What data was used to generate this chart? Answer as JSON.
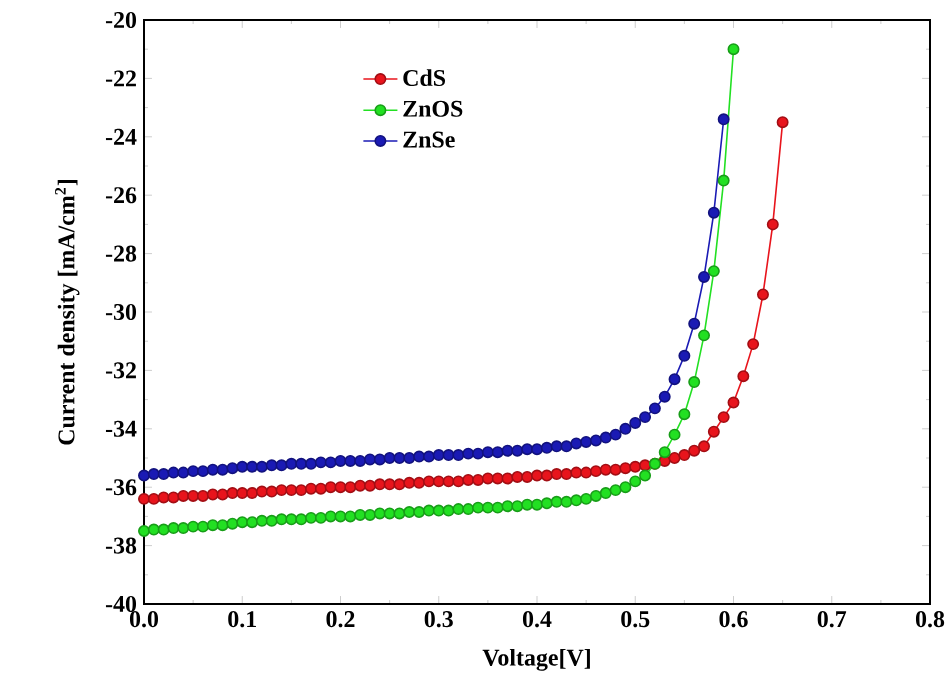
{
  "chart_data": {
    "type": "line",
    "xlabel": "Voltage[V]",
    "ylabel": "Current density [mA/cm$^{2}$]",
    "xlim": [
      0,
      0.8
    ],
    "ylim": [
      -40,
      -20
    ],
    "xticks": [
      {
        "value": 0,
        "label": "0.0"
      },
      {
        "value": 0.1,
        "label": "0.1"
      },
      {
        "value": 0.2,
        "label": "0.2"
      },
      {
        "value": 0.3,
        "label": "0.3"
      },
      {
        "value": 0.4,
        "label": "0.4"
      },
      {
        "value": 0.5,
        "label": "0.5"
      },
      {
        "value": 0.6,
        "label": "0.6"
      },
      {
        "value": 0.7,
        "label": "0.7"
      },
      {
        "value": 0.8,
        "label": "0.8"
      }
    ],
    "yticks": [
      -40,
      -38,
      -36,
      -34,
      -32,
      -30,
      -28,
      -26,
      -24,
      -22,
      -20
    ],
    "marker": "circle",
    "legend": "top left",
    "grid": false,
    "series": [
      {
        "name": "CdS",
        "color": "#e8141c",
        "x": [
          0.0,
          0.01,
          0.02,
          0.03,
          0.04,
          0.05,
          0.06,
          0.07,
          0.08,
          0.09,
          0.1,
          0.11,
          0.12,
          0.13,
          0.14,
          0.15,
          0.16,
          0.17,
          0.18,
          0.19,
          0.2,
          0.21,
          0.22,
          0.23,
          0.24,
          0.25,
          0.26,
          0.27,
          0.28,
          0.29,
          0.3,
          0.31,
          0.32,
          0.33,
          0.34,
          0.35,
          0.36,
          0.37,
          0.38,
          0.39,
          0.4,
          0.41,
          0.42,
          0.43,
          0.44,
          0.45,
          0.46,
          0.47,
          0.48,
          0.49,
          0.5,
          0.51,
          0.52,
          0.53,
          0.54,
          0.55,
          0.56,
          0.57,
          0.58,
          0.59,
          0.6,
          0.61,
          0.62,
          0.63,
          0.64,
          0.65
        ],
        "values": [
          -36.4,
          -36.4,
          -36.35,
          -36.35,
          -36.3,
          -36.3,
          -36.3,
          -36.25,
          -36.25,
          -36.2,
          -36.2,
          -36.2,
          -36.15,
          -36.15,
          -36.1,
          -36.1,
          -36.1,
          -36.05,
          -36.05,
          -36.0,
          -36.0,
          -36.0,
          -35.95,
          -35.95,
          -35.9,
          -35.9,
          -35.9,
          -35.85,
          -35.85,
          -35.8,
          -35.8,
          -35.8,
          -35.8,
          -35.75,
          -35.75,
          -35.7,
          -35.7,
          -35.7,
          -35.65,
          -35.65,
          -35.6,
          -35.6,
          -35.55,
          -35.55,
          -35.5,
          -35.5,
          -35.45,
          -35.4,
          -35.4,
          -35.35,
          -35.3,
          -35.25,
          -35.2,
          -35.1,
          -35.0,
          -34.9,
          -34.75,
          -34.6,
          -34.1,
          -33.6,
          -33.1,
          -32.2,
          -31.1,
          -29.4,
          -27.0,
          -23.5
        ]
      },
      {
        "name": "ZnOS",
        "color": "#22e022",
        "x": [
          0.0,
          0.01,
          0.02,
          0.03,
          0.04,
          0.05,
          0.06,
          0.07,
          0.08,
          0.09,
          0.1,
          0.11,
          0.12,
          0.13,
          0.14,
          0.15,
          0.16,
          0.17,
          0.18,
          0.19,
          0.2,
          0.21,
          0.22,
          0.23,
          0.24,
          0.25,
          0.26,
          0.27,
          0.28,
          0.29,
          0.3,
          0.31,
          0.32,
          0.33,
          0.34,
          0.35,
          0.36,
          0.37,
          0.38,
          0.39,
          0.4,
          0.41,
          0.42,
          0.43,
          0.44,
          0.45,
          0.46,
          0.47,
          0.48,
          0.49,
          0.5,
          0.51,
          0.52,
          0.53,
          0.54,
          0.55,
          0.56,
          0.57,
          0.58,
          0.59,
          0.6
        ],
        "values": [
          -37.5,
          -37.45,
          -37.45,
          -37.4,
          -37.4,
          -37.35,
          -37.35,
          -37.3,
          -37.3,
          -37.25,
          -37.2,
          -37.2,
          -37.15,
          -37.15,
          -37.1,
          -37.1,
          -37.1,
          -37.05,
          -37.05,
          -37.0,
          -37.0,
          -37.0,
          -36.95,
          -36.95,
          -36.9,
          -36.9,
          -36.9,
          -36.85,
          -36.85,
          -36.8,
          -36.8,
          -36.8,
          -36.75,
          -36.75,
          -36.7,
          -36.7,
          -36.7,
          -36.65,
          -36.65,
          -36.6,
          -36.6,
          -36.55,
          -36.5,
          -36.5,
          -36.45,
          -36.4,
          -36.3,
          -36.2,
          -36.1,
          -36.0,
          -35.8,
          -35.6,
          -35.2,
          -34.8,
          -34.2,
          -33.5,
          -32.4,
          -30.8,
          -28.6,
          -25.5,
          -21.0
        ]
      },
      {
        "name": "ZnSe",
        "color": "#1a1ab4",
        "x": [
          0.0,
          0.01,
          0.02,
          0.03,
          0.04,
          0.05,
          0.06,
          0.07,
          0.08,
          0.09,
          0.1,
          0.11,
          0.12,
          0.13,
          0.14,
          0.15,
          0.16,
          0.17,
          0.18,
          0.19,
          0.2,
          0.21,
          0.22,
          0.23,
          0.24,
          0.25,
          0.26,
          0.27,
          0.28,
          0.29,
          0.3,
          0.31,
          0.32,
          0.33,
          0.34,
          0.35,
          0.36,
          0.37,
          0.38,
          0.39,
          0.4,
          0.41,
          0.42,
          0.43,
          0.44,
          0.45,
          0.46,
          0.47,
          0.48,
          0.49,
          0.5,
          0.51,
          0.52,
          0.53,
          0.54,
          0.55,
          0.56,
          0.57,
          0.58,
          0.59
        ],
        "values": [
          -35.6,
          -35.55,
          -35.55,
          -35.5,
          -35.5,
          -35.45,
          -35.45,
          -35.4,
          -35.4,
          -35.35,
          -35.3,
          -35.3,
          -35.3,
          -35.25,
          -35.25,
          -35.2,
          -35.2,
          -35.2,
          -35.15,
          -35.15,
          -35.1,
          -35.1,
          -35.1,
          -35.05,
          -35.05,
          -35.0,
          -35.0,
          -35.0,
          -34.95,
          -34.95,
          -34.9,
          -34.9,
          -34.9,
          -34.85,
          -34.85,
          -34.8,
          -34.8,
          -34.75,
          -34.75,
          -34.7,
          -34.7,
          -34.65,
          -34.6,
          -34.6,
          -34.5,
          -34.45,
          -34.4,
          -34.3,
          -34.2,
          -34.0,
          -33.8,
          -33.6,
          -33.3,
          -32.9,
          -32.3,
          -31.5,
          -30.4,
          -28.8,
          -26.6,
          -23.4
        ]
      }
    ]
  }
}
